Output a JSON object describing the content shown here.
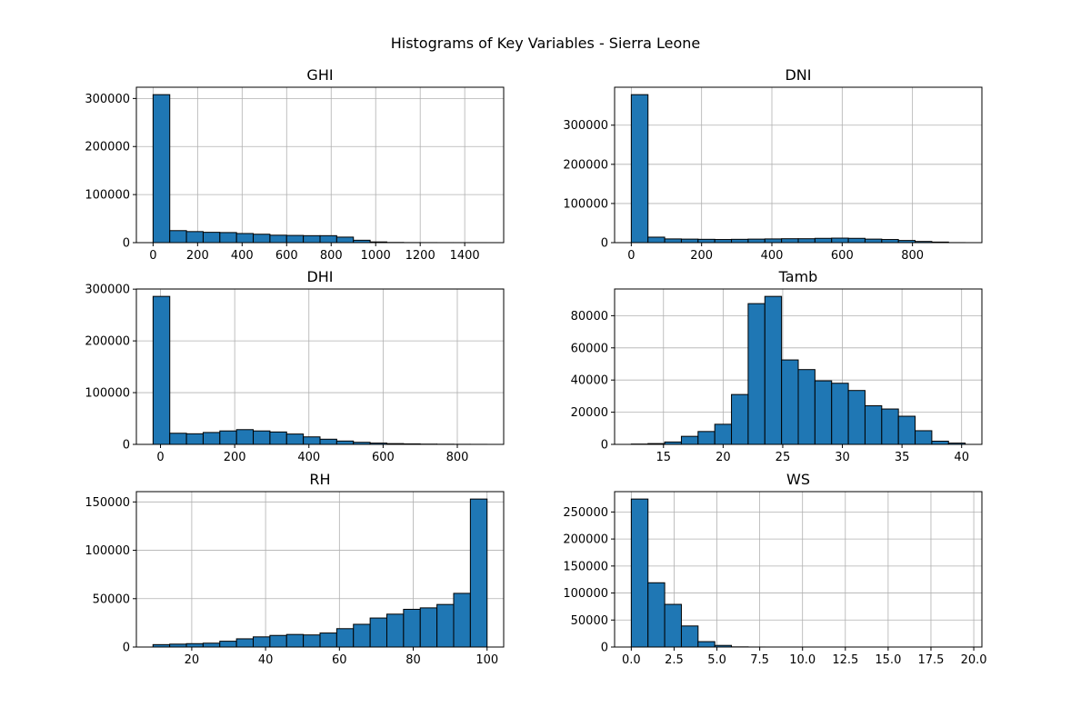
{
  "figure": {
    "title": "Histograms of Key Variables - Sierra Leone"
  },
  "style": {
    "bar_fill": "#1f77b4",
    "bar_edge": "#000000",
    "grid": "#b0b0b0",
    "axis": "#000000"
  },
  "chart_data": [
    {
      "type": "bar",
      "title": "GHI",
      "grid": true,
      "bins": {
        "min": 0,
        "max": 1500,
        "count": 20
      },
      "values": [
        308000,
        25000,
        23000,
        21500,
        21000,
        19000,
        17500,
        15500,
        15000,
        14500,
        14500,
        11500,
        5000,
        1500,
        400,
        150,
        80,
        40,
        20,
        10
      ],
      "xlim": [
        -75,
        1575
      ],
      "ylim": [
        0,
        323400
      ],
      "xticks": [
        0,
        200,
        400,
        600,
        800,
        1000,
        1200,
        1400
      ],
      "yticks": [
        0,
        100000,
        200000,
        300000
      ]
    },
    {
      "type": "bar",
      "title": "DNI",
      "grid": true,
      "bins": {
        "min": 0,
        "max": 950,
        "count": 20
      },
      "values": [
        378000,
        14000,
        9500,
        9000,
        8500,
        8000,
        8500,
        9000,
        9500,
        10000,
        10000,
        11000,
        11500,
        11000,
        9000,
        8000,
        5500,
        3000,
        1500,
        100
      ],
      "xlim": [
        -47.5,
        997.5
      ],
      "ylim": [
        0,
        396900
      ],
      "xticks": [
        0,
        200,
        400,
        600,
        800
      ],
      "yticks": [
        0,
        100000,
        200000,
        300000
      ]
    },
    {
      "type": "bar",
      "title": "DHI",
      "grid": true,
      "bins": {
        "min": -20,
        "max": 880,
        "count": 20
      },
      "values": [
        286000,
        21500,
        20500,
        23000,
        26000,
        28500,
        26000,
        24000,
        20000,
        14500,
        10000,
        6500,
        4000,
        2500,
        1500,
        1000,
        500,
        300,
        150,
        80
      ],
      "xlim": [
        -65,
        925
      ],
      "ylim": [
        0,
        300300
      ],
      "xticks": [
        0,
        200,
        400,
        600,
        800
      ],
      "yticks": [
        0,
        100000,
        200000,
        300000
      ]
    },
    {
      "type": "bar",
      "title": "Tamb",
      "grid": true,
      "bins": {
        "min": 12.3,
        "max": 40.3,
        "count": 20
      },
      "values": [
        200,
        500,
        1500,
        5000,
        8000,
        12500,
        31000,
        87500,
        92000,
        52500,
        46500,
        39500,
        38000,
        33500,
        24000,
        22000,
        17500,
        8500,
        2000,
        800
      ],
      "xlim": [
        10.9,
        41.7
      ],
      "ylim": [
        0,
        96600
      ],
      "xticks": [
        15,
        20,
        25,
        30,
        35,
        40
      ],
      "yticks": [
        0,
        20000,
        40000,
        60000,
        80000
      ]
    },
    {
      "type": "bar",
      "title": "RH",
      "grid": true,
      "bins": {
        "min": 9.5,
        "max": 100,
        "count": 20
      },
      "values": [
        2500,
        3000,
        3500,
        4000,
        6000,
        8500,
        10500,
        12000,
        13000,
        12500,
        14500,
        19000,
        23500,
        30000,
        34000,
        39000,
        40500,
        44000,
        55500,
        153000
      ],
      "xlim": [
        5.0,
        104.5
      ],
      "ylim": [
        0,
        160650
      ],
      "xticks": [
        20,
        40,
        60,
        80,
        100
      ],
      "yticks": [
        0,
        50000,
        100000,
        150000
      ]
    },
    {
      "type": "bar",
      "title": "WS",
      "grid": true,
      "bins": {
        "min": 0,
        "max": 19.5,
        "count": 20
      },
      "values": [
        274000,
        119000,
        79000,
        39000,
        10000,
        3000,
        300,
        50,
        10,
        5,
        3,
        2,
        1,
        1,
        1,
        1,
        1,
        1,
        1,
        1
      ],
      "xlim": [
        -0.975,
        20.475
      ],
      "ylim": [
        0,
        287700
      ],
      "xticks": [
        0.0,
        2.5,
        5.0,
        7.5,
        10.0,
        12.5,
        15.0,
        17.5,
        20.0
      ],
      "ytick_labels_override": null,
      "yticks": [
        0,
        50000,
        100000,
        150000,
        200000,
        250000
      ]
    }
  ]
}
